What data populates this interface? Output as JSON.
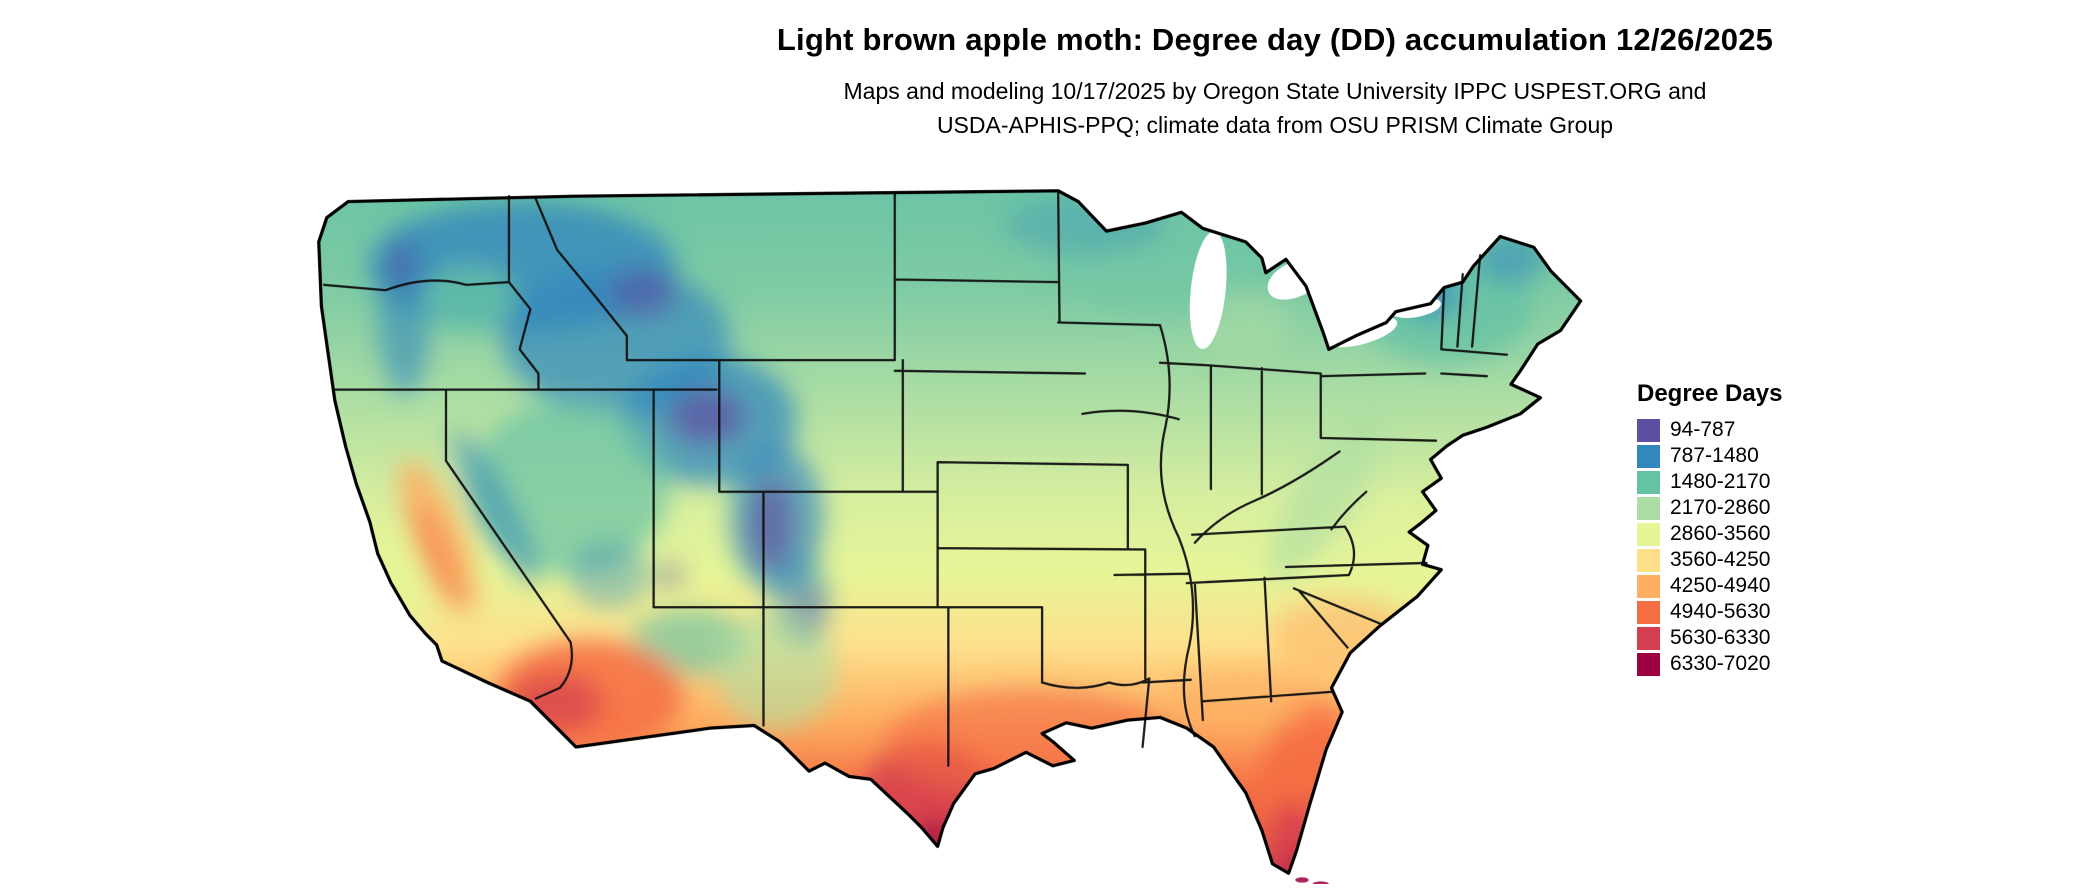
{
  "header": {
    "title": "Light brown apple moth: Degree day (DD) accumulation 12/26/2025",
    "subtitle_line1": "Maps and modeling 10/17/2025 by Oregon State University IPPC USPEST.ORG and",
    "subtitle_line2": "USDA-APHIS-PPQ; climate data from OSU PRISM Climate Group"
  },
  "legend": {
    "title": "Degree Days",
    "entries": [
      {
        "label": "94-787",
        "color": "#5e4fa2"
      },
      {
        "label": "787-1480",
        "color": "#3288bd"
      },
      {
        "label": "1480-2170",
        "color": "#66c2a5"
      },
      {
        "label": "2170-2860",
        "color": "#abdda4"
      },
      {
        "label": "2860-3560",
        "color": "#e6f598"
      },
      {
        "label": "3560-4250",
        "color": "#fee08b"
      },
      {
        "label": "4250-4940",
        "color": "#fdae61"
      },
      {
        "label": "4940-5630",
        "color": "#f46d43"
      },
      {
        "label": "5630-6330",
        "color": "#d53e4f"
      },
      {
        "label": "6330-7020",
        "color": "#9e0142"
      }
    ]
  }
}
